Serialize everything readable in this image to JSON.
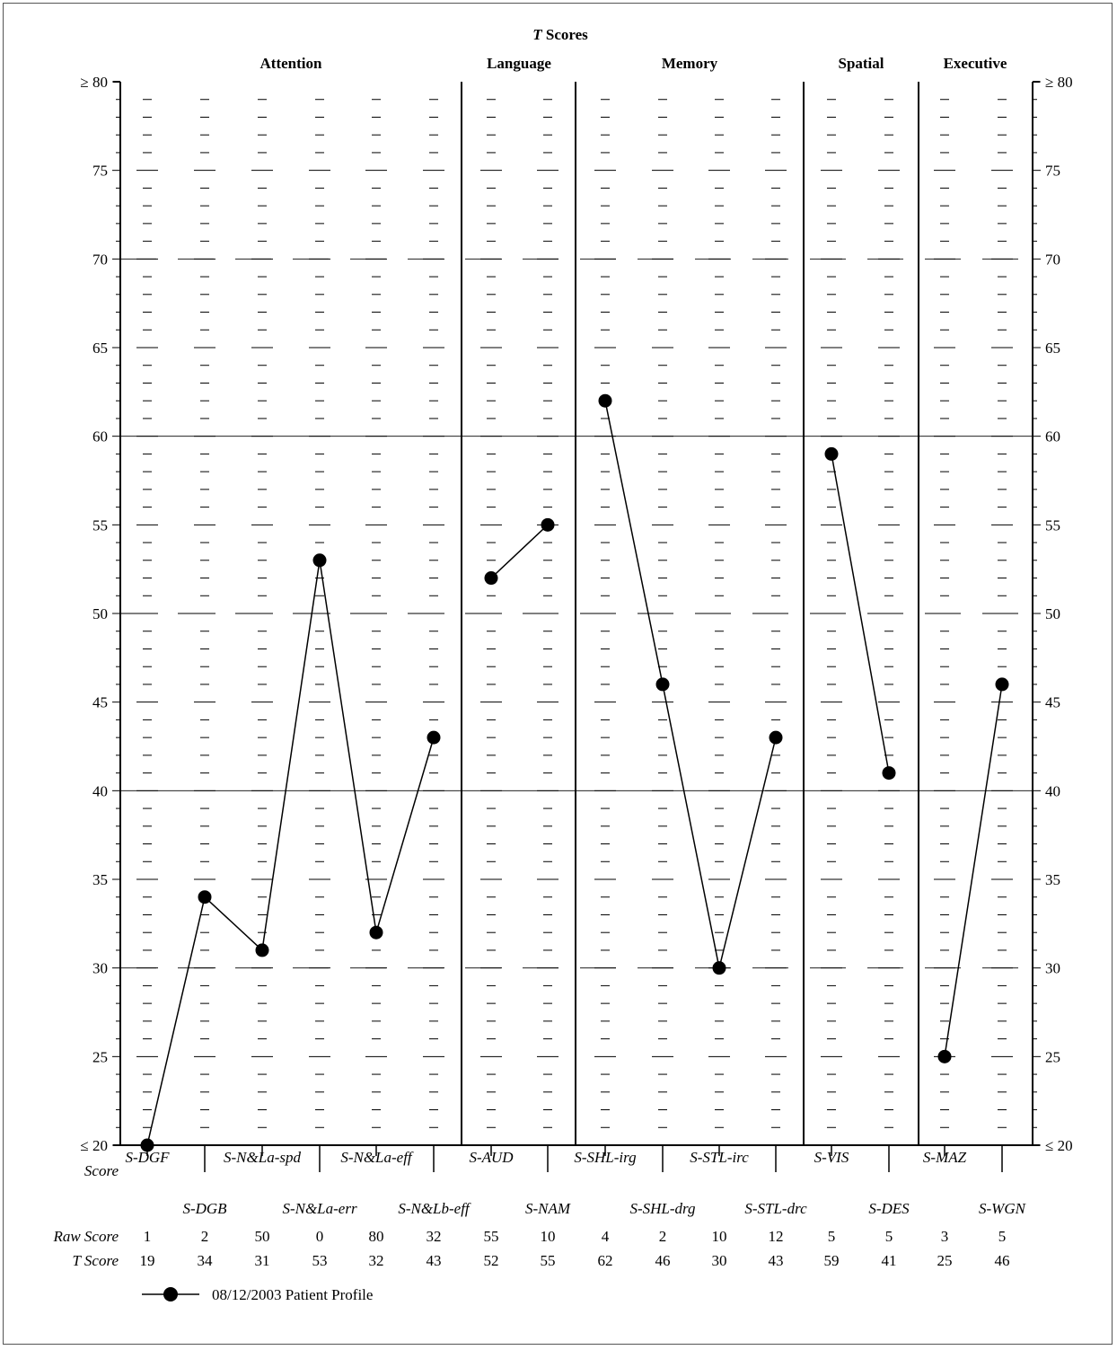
{
  "chart_data": {
    "type": "line",
    "title": "Scores",
    "title_prefix": "T",
    "ylim": [
      20,
      80
    ],
    "y_ticks": [
      "≤ 20",
      "25",
      "30",
      "35",
      "40",
      "45",
      "50",
      "55",
      "60",
      "65",
      "70",
      "75",
      "≥ 80"
    ],
    "grid": true,
    "domains": [
      {
        "name": "Attention",
        "tests": [
          "S-DGF",
          "S-DGB",
          "S-N&La-spd",
          "S-N&La-err",
          "S-N&La-eff",
          "S-N&Lb-eff"
        ]
      },
      {
        "name": "Language",
        "tests": [
          "S-AUD",
          "S-NAM"
        ]
      },
      {
        "name": "Memory",
        "tests": [
          "S-SHL-irg",
          "S-SHL-drg",
          "S-STL-irc",
          "S-STL-drc"
        ]
      },
      {
        "name": "Spatial",
        "tests": [
          "S-VIS",
          "S-DES"
        ]
      },
      {
        "name": "Executive",
        "tests": [
          "S-MAZ",
          "S-WGN"
        ]
      }
    ],
    "categories": [
      "S-DGF",
      "S-DGB",
      "S-N&La-spd",
      "S-N&La-err",
      "S-N&La-eff",
      "S-N&Lb-eff",
      "S-AUD",
      "S-NAM",
      "S-SHL-irg",
      "S-SHL-drg",
      "S-STL-irc",
      "S-STL-drc",
      "S-VIS",
      "S-DES",
      "S-MAZ",
      "S-WGN"
    ],
    "series": [
      {
        "name": "08/12/2003 Patient Profile",
        "values": [
          20,
          34,
          31,
          53,
          32,
          43,
          52,
          55,
          62,
          46,
          30,
          43,
          59,
          41,
          25,
          46
        ]
      }
    ],
    "row_labels": {
      "score": "Score",
      "raw": "Raw Score",
      "t": "T Score"
    },
    "raw_scores": [
      "1",
      "2",
      "50",
      "0",
      "80",
      "32",
      "55",
      "10",
      "4",
      "2",
      "10",
      "12",
      "5",
      "5",
      "3",
      "5"
    ],
    "t_scores": [
      "19",
      "34",
      "31",
      "53",
      "32",
      "43",
      "52",
      "55",
      "62",
      "46",
      "30",
      "43",
      "59",
      "41",
      "25",
      "46"
    ],
    "legend_position": "bottom-left"
  },
  "colors": {
    "line": "#000000",
    "marker": "#000000",
    "grid": "#000000"
  }
}
